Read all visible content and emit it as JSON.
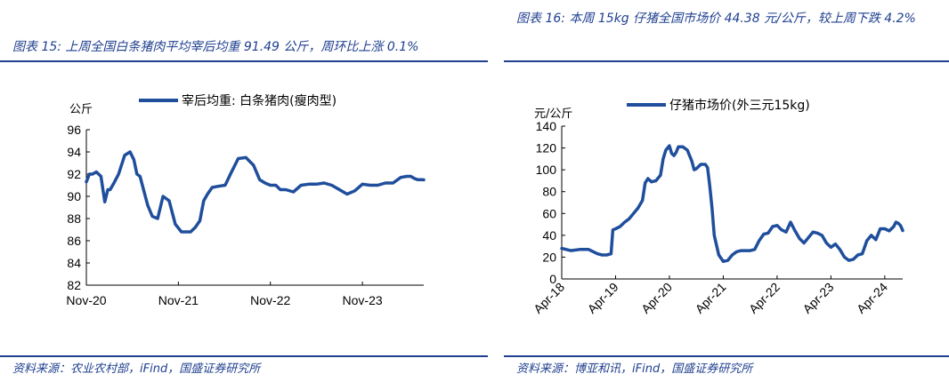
{
  "left": {
    "caption": "图表 15:  上周全国白条猪肉平均宰后均重 91.49 公斤，周环比上涨 0.1%",
    "source": "资料来源：农业农村部，iFind，国盛证券研究所"
  },
  "right": {
    "caption": "图表 16:  本周 15kg 仔猪全国市场价 44.38 元/公斤，较上周下跌 4.2%",
    "source": "资料来源：博亚和讯，iFind，国盛证券研究所"
  },
  "colors": {
    "line": "#1f4e9c",
    "accent": "#1f3f8f",
    "axis": "#000000"
  },
  "chart_data": [
    {
      "type": "line",
      "title": "",
      "ylabel": "公斤",
      "xlabel": "",
      "ylim": [
        82,
        96
      ],
      "yticks": [
        "82",
        "84",
        "86",
        "88",
        "90",
        "92",
        "94",
        "96"
      ],
      "xtick_labels": [
        "Nov-20",
        "Nov-21",
        "Nov-22",
        "Nov-23"
      ],
      "xlim_months": [
        0,
        44
      ],
      "grid": false,
      "legend_position": "top",
      "series": [
        {
          "name": "宰后均重: 白条猪肉(瘦肉型)",
          "months": [
            0,
            0.4,
            0.8,
            1.3,
            1.9,
            2.4,
            2.8,
            3.1,
            3.6,
            4.2,
            5,
            5.7,
            6.2,
            6.6,
            7.0,
            7.5,
            8.0,
            8.6,
            9.3,
            10.0,
            10.8,
            11.6,
            12.4,
            13.0,
            13.6,
            14.2,
            14.8,
            15.3,
            15.8,
            16.4,
            17.2,
            18.1,
            19.0,
            19.8,
            20.8,
            21.8,
            22.6,
            23.3,
            24.0,
            24.7,
            25.3,
            26.0,
            27,
            28,
            29,
            30,
            31,
            32,
            33,
            34,
            35,
            36,
            37,
            38,
            39,
            40,
            41,
            41.8,
            42.3,
            42.8,
            43.2,
            43.6,
            44.0
          ],
          "values": [
            91.3,
            92.0,
            92.0,
            92.2,
            91.8,
            89.5,
            90.6,
            90.6,
            91.2,
            92.0,
            93.7,
            94.0,
            93.3,
            92.0,
            91.8,
            90.5,
            89.2,
            88.2,
            88.0,
            90.0,
            89.6,
            87.5,
            86.8,
            86.8,
            86.8,
            87.2,
            87.8,
            89.6,
            90.2,
            90.8,
            90.9,
            91.0,
            92.3,
            93.4,
            93.5,
            92.8,
            91.5,
            91.2,
            91.0,
            91.0,
            90.6,
            90.6,
            90.4,
            91.0,
            91.1,
            91.1,
            91.2,
            91.0,
            90.6,
            90.2,
            90.5,
            91.1,
            91.0,
            91.0,
            91.2,
            91.2,
            91.7,
            91.8,
            91.8,
            91.6,
            91.5,
            91.5,
            91.49
          ]
        }
      ]
    },
    {
      "type": "line",
      "title": "",
      "ylabel": "元/公斤",
      "xlabel": "",
      "ylim": [
        0,
        140
      ],
      "yticks": [
        "0",
        "20",
        "40",
        "60",
        "80",
        "100",
        "120",
        "140"
      ],
      "xtick_labels": [
        "Apr-18",
        "Apr-19",
        "Apr-20",
        "Apr-21",
        "Apr-22",
        "Apr-23",
        "Apr-24"
      ],
      "xlim_months": [
        0,
        76
      ],
      "grid": false,
      "legend_position": "top",
      "series": [
        {
          "name": "仔猪市场价(外三元15kg)",
          "months": [
            0,
            2,
            4,
            6,
            7,
            8,
            9,
            10,
            11,
            11.4,
            12,
            13,
            14,
            15,
            16,
            17,
            18,
            18.6,
            19.2,
            20,
            21,
            22,
            22.6,
            23.2,
            24,
            24.5,
            25,
            25.5,
            26,
            27,
            28,
            29,
            29.5,
            30,
            31,
            32,
            32.5,
            33,
            33.5,
            34,
            35,
            36,
            37,
            38,
            39,
            40,
            41,
            42,
            43,
            44,
            45,
            46,
            47,
            48,
            49,
            50,
            51,
            52,
            53,
            54,
            55,
            56,
            57,
            58,
            59,
            60,
            61,
            62,
            63,
            64,
            65,
            66,
            67,
            68,
            69,
            70,
            71,
            72,
            73,
            74,
            74.5,
            75,
            75.5,
            76
          ],
          "values": [
            28,
            26,
            27,
            27,
            25,
            23,
            22,
            22,
            23,
            45,
            46,
            48,
            52,
            55,
            60,
            65,
            72,
            88,
            92,
            89,
            90,
            95,
            110,
            118,
            122,
            115,
            113,
            116,
            121,
            121,
            118,
            108,
            100,
            101,
            105,
            105,
            102,
            85,
            65,
            40,
            22,
            16,
            17,
            22,
            25,
            26,
            26,
            26,
            27,
            35,
            41,
            42,
            48,
            49,
            45,
            43,
            52,
            44,
            37,
            33,
            38,
            43,
            42,
            40,
            33,
            29,
            32,
            27,
            20,
            17,
            18,
            22,
            23,
            35,
            40,
            36,
            46,
            46,
            44,
            48,
            52,
            51,
            49,
            44.38
          ]
        }
      ]
    }
  ]
}
